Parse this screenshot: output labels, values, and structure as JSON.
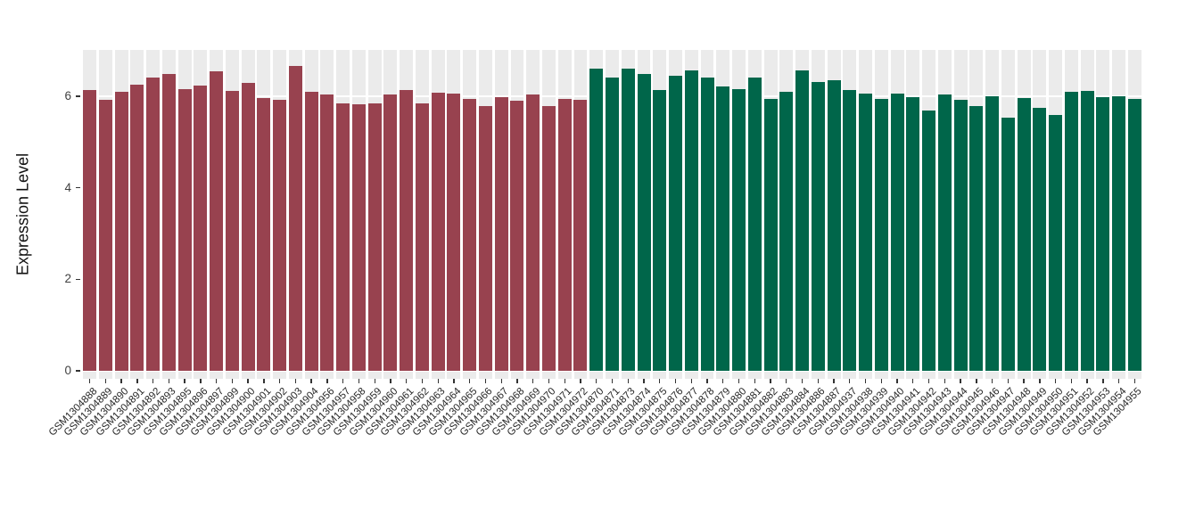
{
  "colors": {
    "group1": "#98424F",
    "group2": "#00664A",
    "panel_background": "#EBEBEB",
    "gridline": "#FFFFFF",
    "tick_mark": "#333333",
    "tick_label": "#404040",
    "axis_title": "#111111"
  },
  "chart_data": {
    "type": "bar",
    "title": "",
    "xlabel": "",
    "ylabel": "Expression Level",
    "ylim": [
      0,
      7.0
    ],
    "yticks": [
      0,
      2,
      4,
      6
    ],
    "grid": true,
    "legend_position": "none",
    "bars": [
      {
        "label": "GSM1304888",
        "value": 6.13,
        "group": "group1"
      },
      {
        "label": "GSM1304889",
        "value": 5.93,
        "group": "group1"
      },
      {
        "label": "GSM1304890",
        "value": 6.1,
        "group": "group1"
      },
      {
        "label": "GSM1304891",
        "value": 6.26,
        "group": "group1"
      },
      {
        "label": "GSM1304892",
        "value": 6.41,
        "group": "group1"
      },
      {
        "label": "GSM1304893",
        "value": 6.49,
        "group": "group1"
      },
      {
        "label": "GSM1304895",
        "value": 6.16,
        "group": "group1"
      },
      {
        "label": "GSM1304896",
        "value": 6.24,
        "group": "group1"
      },
      {
        "label": "GSM1304897",
        "value": 6.54,
        "group": "group1"
      },
      {
        "label": "GSM1304899",
        "value": 6.12,
        "group": "group1"
      },
      {
        "label": "GSM1304900",
        "value": 6.29,
        "group": "group1"
      },
      {
        "label": "GSM1304901",
        "value": 5.96,
        "group": "group1"
      },
      {
        "label": "GSM1304902",
        "value": 5.93,
        "group": "group1"
      },
      {
        "label": "GSM1304903",
        "value": 6.67,
        "group": "group1"
      },
      {
        "label": "GSM1304904",
        "value": 6.09,
        "group": "group1"
      },
      {
        "label": "GSM1304956",
        "value": 6.03,
        "group": "group1"
      },
      {
        "label": "GSM1304957",
        "value": 5.85,
        "group": "group1"
      },
      {
        "label": "GSM1304958",
        "value": 5.82,
        "group": "group1"
      },
      {
        "label": "GSM1304959",
        "value": 5.84,
        "group": "group1"
      },
      {
        "label": "GSM1304960",
        "value": 6.03,
        "group": "group1"
      },
      {
        "label": "GSM1304961",
        "value": 6.13,
        "group": "group1"
      },
      {
        "label": "GSM1304962",
        "value": 5.84,
        "group": "group1"
      },
      {
        "label": "GSM1304963",
        "value": 6.08,
        "group": "group1"
      },
      {
        "label": "GSM1304964",
        "value": 6.05,
        "group": "group1"
      },
      {
        "label": "GSM1304965",
        "value": 5.94,
        "group": "group1"
      },
      {
        "label": "GSM1304966",
        "value": 5.79,
        "group": "group1"
      },
      {
        "label": "GSM1304967",
        "value": 5.99,
        "group": "group1"
      },
      {
        "label": "GSM1304968",
        "value": 5.91,
        "group": "group1"
      },
      {
        "label": "GSM1304969",
        "value": 6.03,
        "group": "group1"
      },
      {
        "label": "GSM1304970",
        "value": 5.78,
        "group": "group1"
      },
      {
        "label": "GSM1304971",
        "value": 5.95,
        "group": "group1"
      },
      {
        "label": "GSM1304972",
        "value": 5.93,
        "group": "group1"
      },
      {
        "label": "GSM1304870",
        "value": 6.6,
        "group": "group2"
      },
      {
        "label": "GSM1304871",
        "value": 6.41,
        "group": "group2"
      },
      {
        "label": "GSM1304873",
        "value": 6.61,
        "group": "group2"
      },
      {
        "label": "GSM1304874",
        "value": 6.49,
        "group": "group2"
      },
      {
        "label": "GSM1304875",
        "value": 6.13,
        "group": "group2"
      },
      {
        "label": "GSM1304876",
        "value": 6.44,
        "group": "group2"
      },
      {
        "label": "GSM1304877",
        "value": 6.56,
        "group": "group2"
      },
      {
        "label": "GSM1304878",
        "value": 6.4,
        "group": "group2"
      },
      {
        "label": "GSM1304879",
        "value": 6.21,
        "group": "group2"
      },
      {
        "label": "GSM1304880",
        "value": 6.15,
        "group": "group2"
      },
      {
        "label": "GSM1304881",
        "value": 6.4,
        "group": "group2"
      },
      {
        "label": "GSM1304882",
        "value": 5.95,
        "group": "group2"
      },
      {
        "label": "GSM1304883",
        "value": 6.1,
        "group": "group2"
      },
      {
        "label": "GSM1304884",
        "value": 6.56,
        "group": "group2"
      },
      {
        "label": "GSM1304886",
        "value": 6.31,
        "group": "group2"
      },
      {
        "label": "GSM1304887",
        "value": 6.36,
        "group": "group2"
      },
      {
        "label": "GSM1304937",
        "value": 6.13,
        "group": "group2"
      },
      {
        "label": "GSM1304938",
        "value": 6.05,
        "group": "group2"
      },
      {
        "label": "GSM1304939",
        "value": 5.95,
        "group": "group2"
      },
      {
        "label": "GSM1304940",
        "value": 6.05,
        "group": "group2"
      },
      {
        "label": "GSM1304941",
        "value": 5.99,
        "group": "group2"
      },
      {
        "label": "GSM1304942",
        "value": 5.68,
        "group": "group2"
      },
      {
        "label": "GSM1304943",
        "value": 6.03,
        "group": "group2"
      },
      {
        "label": "GSM1304944",
        "value": 5.93,
        "group": "group2"
      },
      {
        "label": "GSM1304945",
        "value": 5.78,
        "group": "group2"
      },
      {
        "label": "GSM1304946",
        "value": 6.01,
        "group": "group2"
      },
      {
        "label": "GSM1304947",
        "value": 5.54,
        "group": "group2"
      },
      {
        "label": "GSM1304948",
        "value": 5.96,
        "group": "group2"
      },
      {
        "label": "GSM1304949",
        "value": 5.75,
        "group": "group2"
      },
      {
        "label": "GSM1304950",
        "value": 5.59,
        "group": "group2"
      },
      {
        "label": "GSM1304951",
        "value": 6.09,
        "group": "group2"
      },
      {
        "label": "GSM1304952",
        "value": 6.12,
        "group": "group2"
      },
      {
        "label": "GSM1304953",
        "value": 5.98,
        "group": "group2"
      },
      {
        "label": "GSM1304954",
        "value": 6.01,
        "group": "group2"
      },
      {
        "label": "GSM1304955",
        "value": 5.94,
        "group": "group2"
      }
    ]
  }
}
